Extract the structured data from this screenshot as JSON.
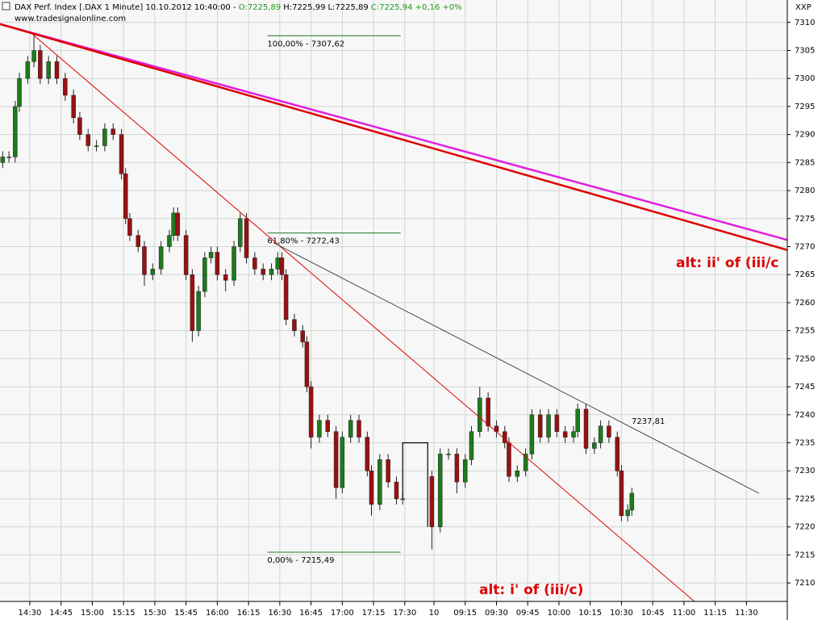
{
  "header": {
    "title": "DAX Perf. Index [.DAX  1 Minute] 10.10.2012 10:40:00 - ",
    "open": "O:7225,89",
    "high": "H:7225,99",
    "low": "L:7225,89",
    "close": "C:7225,94 +0,16 +0%",
    "site": "www.tradesignalonline.com",
    "axis_code": "XXP"
  },
  "chart_data": {
    "type": "candlestick",
    "xlim": [
      -14.3,
      363.6
    ],
    "ylim": [
      7206.7,
      7314.0
    ],
    "yticks": [
      7210,
      7215,
      7220,
      7225,
      7230,
      7235,
      7240,
      7245,
      7250,
      7255,
      7260,
      7265,
      7270,
      7275,
      7280,
      7285,
      7290,
      7295,
      7300,
      7305,
      7310
    ],
    "xticks": [
      {
        "value": 0,
        "label": "14:30"
      },
      {
        "value": 15,
        "label": "14:45"
      },
      {
        "value": 30,
        "label": "15:00"
      },
      {
        "value": 45,
        "label": "15:15"
      },
      {
        "value": 60,
        "label": "15:30"
      },
      {
        "value": 75,
        "label": "15:45"
      },
      {
        "value": 90,
        "label": "16:00"
      },
      {
        "value": 105,
        "label": "16:15"
      },
      {
        "value": 120,
        "label": "16:30"
      },
      {
        "value": 135,
        "label": "16:45"
      },
      {
        "value": 150,
        "label": "17:00"
      },
      {
        "value": 165,
        "label": "17:15"
      },
      {
        "value": 180,
        "label": "17:30"
      },
      {
        "value": 194,
        "label": "10"
      },
      {
        "value": 209,
        "label": "09:15"
      },
      {
        "value": 224,
        "label": "09:30"
      },
      {
        "value": 239,
        "label": "09:45"
      },
      {
        "value": 254,
        "label": "10:00"
      },
      {
        "value": 269,
        "label": "10:15"
      },
      {
        "value": 284,
        "label": "10:30"
      },
      {
        "value": 299,
        "label": "10:45"
      },
      {
        "value": 314,
        "label": "11:00"
      },
      {
        "value": 329,
        "label": "11:15"
      },
      {
        "value": 344,
        "label": "11:30"
      }
    ],
    "grid": true,
    "up_color": "#1d7a1d",
    "down_color": "#9a1010",
    "candles": {
      "x": [
        -13,
        -10,
        -7,
        -5,
        -1,
        2,
        5,
        9,
        13,
        17,
        21,
        24,
        28,
        32,
        36,
        40,
        44,
        46,
        48,
        52,
        55,
        59,
        63,
        67,
        69,
        71,
        75,
        78,
        81,
        84,
        87,
        90,
        94,
        98,
        101,
        104,
        108,
        112,
        116,
        119,
        121,
        123,
        127,
        131,
        133,
        135,
        139,
        143,
        147,
        150,
        154,
        158,
        162,
        164,
        168,
        172,
        176,
        179,
        193,
        197,
        201,
        205,
        209,
        212,
        216,
        220,
        224,
        228,
        230,
        234,
        238,
        241,
        245,
        249,
        253,
        257,
        261,
        263,
        267,
        271,
        274,
        278,
        282,
        284,
        287,
        289
      ],
      "open": [
        7285,
        7286,
        7286,
        7295,
        7300,
        7303,
        7305,
        7300,
        7303,
        7300,
        7297,
        7293,
        7290,
        7288,
        7288,
        7291,
        7290,
        7283,
        7275,
        7272,
        7270,
        7265,
        7266,
        7270,
        7272,
        7276,
        7272,
        7265,
        7255,
        7262,
        7268,
        7269,
        7265,
        7264,
        7270,
        7275,
        7268,
        7266,
        7265,
        7266,
        7268,
        7265,
        7257,
        7255,
        7253,
        7245,
        7236,
        7239,
        7237,
        7227,
        7236,
        7239,
        7236,
        7230,
        7224,
        7232,
        7228,
        7225,
        7229,
        7220,
        7233,
        7233,
        7228,
        7232,
        7237,
        7243,
        7238,
        7237,
        7235,
        7229,
        7230,
        7233,
        7240,
        7236,
        7240,
        7237,
        7236,
        7237,
        7241,
        7234,
        7235,
        7238,
        7236,
        7230,
        7222,
        7223
      ],
      "high": [
        7287,
        7287,
        7296,
        7301,
        7304,
        7308,
        7306,
        7304,
        7304,
        7301,
        7298,
        7294,
        7291,
        7289,
        7292,
        7292,
        7291,
        7284,
        7276,
        7273,
        7271,
        7267,
        7271,
        7273,
        7277,
        7277,
        7273,
        7266,
        7263,
        7269,
        7270,
        7270,
        7266,
        7271,
        7276,
        7276,
        7269,
        7267,
        7267,
        7269,
        7269,
        7266,
        7258,
        7256,
        7254,
        7246,
        7240,
        7240,
        7238,
        7237,
        7240,
        7240,
        7237,
        7231,
        7233,
        7233,
        7229,
        7226,
        7230,
        7234,
        7234,
        7234,
        7233,
        7238,
        7245,
        7244,
        7239,
        7238,
        7236,
        7231,
        7234,
        7241,
        7241,
        7241,
        7241,
        7238,
        7238,
        7242,
        7242,
        7236,
        7239,
        7239,
        7237,
        7231,
        7224,
        7227
      ],
      "low": [
        7284,
        7285,
        7285,
        7294,
        7299,
        7302,
        7299,
        7299,
        7299,
        7296,
        7292,
        7289,
        7287,
        7287,
        7287,
        7289,
        7282,
        7274,
        7271,
        7269,
        7263,
        7264,
        7265,
        7269,
        7271,
        7271,
        7264,
        7253,
        7254,
        7261,
        7267,
        7264,
        7262,
        7263,
        7269,
        7267,
        7265,
        7264,
        7264,
        7265,
        7264,
        7256,
        7254,
        7252,
        7244,
        7234,
        7235,
        7236,
        7225,
        7226,
        7235,
        7235,
        7229,
        7222,
        7223,
        7227,
        7224,
        7224,
        7216,
        7219,
        7232,
        7226,
        7227,
        7231,
        7236,
        7237,
        7236,
        7234,
        7228,
        7228,
        7229,
        7232,
        7235,
        7235,
        7236,
        7235,
        7235,
        7236,
        7233,
        7233,
        7234,
        7235,
        7229,
        7221,
        7221,
        7222
      ],
      "close": [
        7286,
        7286,
        7295,
        7300,
        7303,
        7305,
        7300,
        7303,
        7300,
        7297,
        7293,
        7290,
        7288,
        7288,
        7291,
        7290,
        7283,
        7275,
        7272,
        7270,
        7265,
        7266,
        7270,
        7272,
        7276,
        7272,
        7265,
        7255,
        7262,
        7268,
        7269,
        7265,
        7264,
        7270,
        7275,
        7268,
        7266,
        7265,
        7266,
        7268,
        7265,
        7257,
        7255,
        7253,
        7245,
        7236,
        7239,
        7237,
        7227,
        7236,
        7239,
        7236,
        7230,
        7224,
        7232,
        7228,
        7225,
        7225,
        7220,
        7233,
        7233,
        7228,
        7232,
        7237,
        7243,
        7238,
        7237,
        7235,
        7229,
        7230,
        7233,
        7240,
        7236,
        7240,
        7237,
        7236,
        7237,
        7241,
        7234,
        7235,
        7238,
        7236,
        7230,
        7222,
        7223,
        7226
      ]
    },
    "connector": {
      "color": "#000000",
      "x": [
        179,
        179,
        191,
        191
      ],
      "values": [
        7225,
        7235,
        7235,
        7220
      ]
    },
    "trend_lines": [
      {
        "color": "#e020e0",
        "width": 2.5,
        "x": [
          -14.3,
          363.6
        ],
        "values": [
          7309.7,
          7271.2
        ]
      },
      {
        "color": "#e00000",
        "width": 2.5,
        "x": [
          -14.3,
          363.6
        ],
        "values": [
          7309.7,
          7269.4
        ]
      },
      {
        "color": "#e00000",
        "width": 1,
        "x": [
          1,
          319
        ],
        "values": [
          7308.0,
          7206.7
        ]
      },
      {
        "color": "#303030",
        "width": 0.8,
        "x": [
          117,
          350
        ],
        "values": [
          7270.7,
          7226.0
        ],
        "label": "7237,81"
      }
    ],
    "fib_color": "#1d7a1d",
    "fib_x": [
      114,
      178
    ],
    "fib_levels": [
      {
        "value": 7307.62,
        "label": "100,00% - 7307,62"
      },
      {
        "value": 7272.43,
        "label": "61,80% - 7272,43"
      },
      {
        "value": 7215.49,
        "label": "0,00% - 7215,49"
      }
    ],
    "annotations": [
      "alt: ii' of (iii/c",
      "alt: i' of (iii/c)"
    ]
  }
}
